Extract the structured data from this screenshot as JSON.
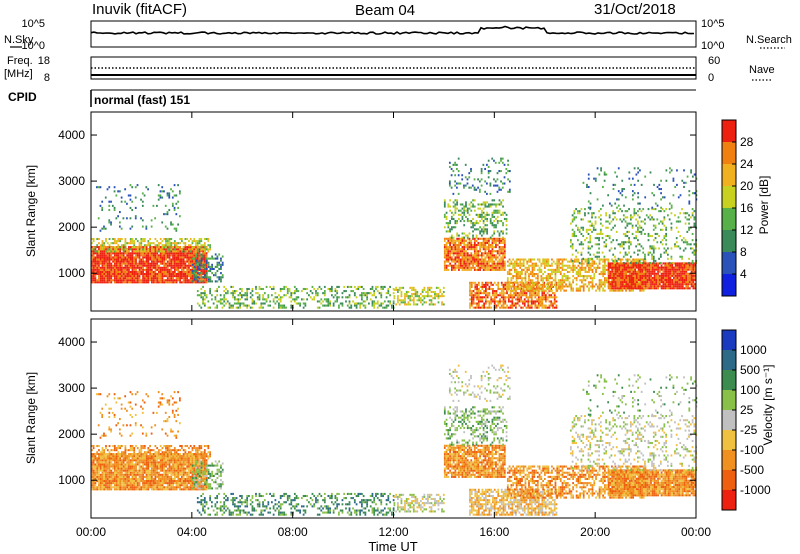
{
  "header": {
    "station": "Inuvik (fitACF)",
    "beam": "Beam 04",
    "date": "31/Oct/2018"
  },
  "strips": {
    "nsky_label": "N.Sky",
    "nsky_ticks": [
      "10^5",
      "10^0"
    ],
    "nsearch_label": "N.Search",
    "freq_label_line1": "Freq.",
    "freq_label_line2": "[MHz]",
    "freq_ticks": [
      "18",
      "8"
    ],
    "nave_label": "Nave",
    "nave_ticks": [
      "60",
      "0"
    ],
    "cpid_label": "CPID",
    "cpid_value": "normal (fast) 151"
  },
  "colors": {
    "power_scale": [
      "#1020e0",
      "#2a52b8",
      "#3a8a5a",
      "#58b048",
      "#c8d020",
      "#f0b020",
      "#f08010",
      "#ee2010"
    ],
    "velocity_scale": [
      "#1a3ac0",
      "#2c6a88",
      "#3c8c50",
      "#88c048",
      "#c0c0c0",
      "#f0c040",
      "#f09020",
      "#ee6010",
      "#ee2010"
    ]
  },
  "chart_data": [
    {
      "type": "heatmap",
      "name": "power",
      "ylabel": "Slant Range [km]",
      "yticks": [
        "1000",
        "2000",
        "3000",
        "4000"
      ],
      "ylim": [
        180,
        4500
      ],
      "xticks": [
        "00:00",
        "04:00",
        "08:00",
        "12:00",
        "16:00",
        "20:00",
        "00:00"
      ],
      "xlim_hours": [
        0,
        24
      ],
      "colorbar_label": "Power [dB]",
      "colorbar_ticks": [
        "28",
        "24",
        "20",
        "16",
        "12",
        "8",
        "4"
      ],
      "colorbar_range": [
        0,
        32
      ]
    },
    {
      "type": "heatmap",
      "name": "velocity",
      "ylabel": "Slant Range [km]",
      "yticks": [
        "1000",
        "2000",
        "3000",
        "4000"
      ],
      "ylim": [
        180,
        4500
      ],
      "xticks": [
        "00:00",
        "04:00",
        "08:00",
        "12:00",
        "16:00",
        "20:00",
        "00:00"
      ],
      "xlim_hours": [
        0,
        24
      ],
      "xlabel": "Time UT",
      "colorbar_label": "Velocity [m s⁻¹]",
      "colorbar_ticks": [
        "1000",
        "500",
        "100",
        "25",
        "-25",
        "-100",
        "-500",
        "-1000"
      ]
    }
  ]
}
